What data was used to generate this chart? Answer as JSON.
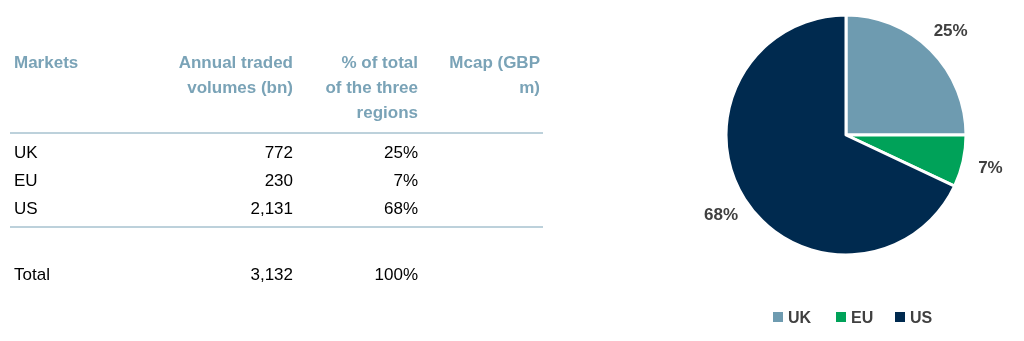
{
  "chart_data": [
    {
      "type": "other",
      "categories": [
        "UK",
        "EU",
        "US",
        "Total"
      ],
      "series": [
        {
          "name": "Annual traded volumes (bn)",
          "values": [
            772,
            230,
            2131,
            3132
          ],
          "value_labels": [
            "772",
            "230",
            "2,131",
            "3,132"
          ]
        },
        {
          "name": "% of total of the three regions",
          "values": [
            25,
            7,
            68,
            100
          ],
          "value_labels": [
            "25%",
            "7%",
            "68%",
            "100%"
          ]
        }
      ],
      "annotations": [
        "Markets",
        "Mcap (GBP m)"
      ]
    },
    {
      "type": "pie",
      "categories": [
        "UK",
        "EU",
        "US"
      ],
      "values": [
        25,
        7,
        68
      ],
      "colors": [
        "#6e9bb0",
        "#00a259",
        "#002a4f"
      ],
      "value_labels": [
        "25%",
        "7%",
        "68%"
      ],
      "legend": "bottom"
    }
  ]
}
